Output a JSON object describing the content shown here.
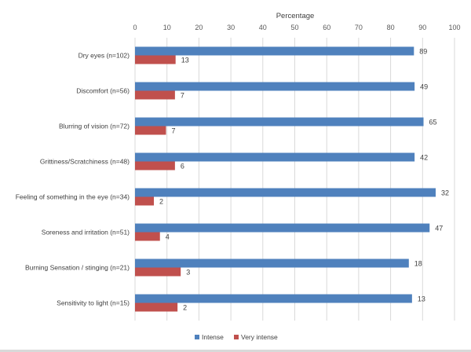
{
  "chart_data": {
    "type": "bar",
    "orientation": "horizontal",
    "title": "",
    "xlabel": "Percentage",
    "ylabel": "",
    "xlim": [
      0,
      100
    ],
    "x_ticks": [
      0,
      10,
      20,
      30,
      40,
      50,
      60,
      70,
      80,
      90,
      100
    ],
    "grid": true,
    "legend_position": "bottom",
    "categories": [
      "Dry eyes (n=102)",
      "Discomfort (n=56)",
      "Blurring of vision (n=72)",
      "Grittiness/Scratchiness (n=48)",
      "Feeling of something in the eye (n=34)",
      "Soreness and irritation (n=51)",
      "Burning Sensation / stinging (n=21)",
      "Sensitivity to light (n=15)"
    ],
    "series": [
      {
        "name": "Intense",
        "color": "#4f81bd",
        "values": [
          87.3,
          87.5,
          90.3,
          87.5,
          94.1,
          92.2,
          85.7,
          86.7
        ],
        "labels": [
          "89",
          "49",
          "65",
          "42",
          "32",
          "47",
          "18",
          "13"
        ]
      },
      {
        "name": "Very intense",
        "color": "#c0504d",
        "values": [
          12.7,
          12.5,
          9.7,
          12.5,
          5.9,
          7.8,
          14.3,
          13.3
        ],
        "labels": [
          "13",
          "7",
          "7",
          "6",
          "2",
          "4",
          "3",
          "2"
        ]
      }
    ]
  }
}
